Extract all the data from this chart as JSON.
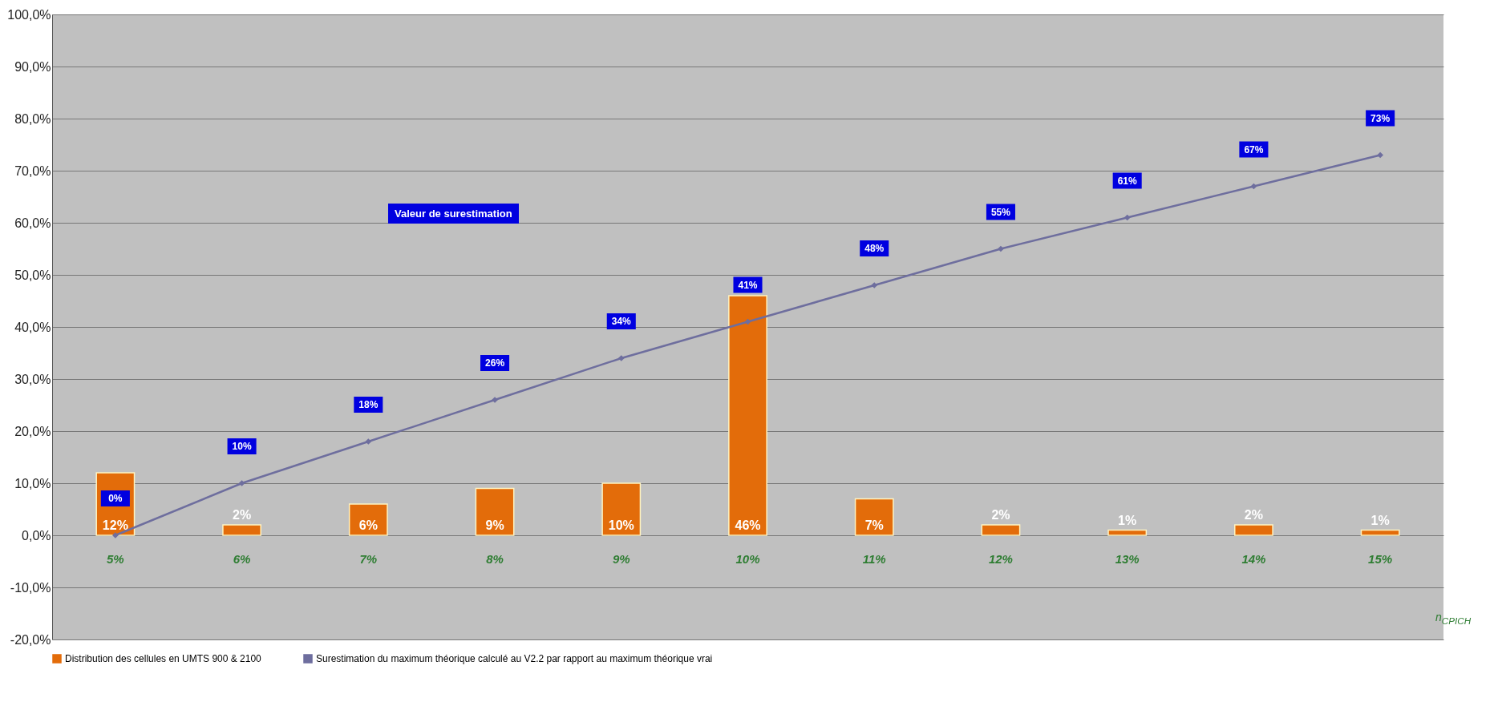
{
  "chart_data": {
    "type": "bar",
    "categories": [
      "5%",
      "6%",
      "7%",
      "8%",
      "9%",
      "10%",
      "11%",
      "12%",
      "13%",
      "14%",
      "15%"
    ],
    "series": [
      {
        "name": "Distribution des cellules en UMTS 900 & 2100",
        "color": "#e36c0a",
        "values": [
          12,
          2,
          6,
          9,
          10,
          46,
          7,
          2,
          1,
          2,
          1
        ],
        "value_labels": [
          "12%",
          "2%",
          "6%",
          "9%",
          "10%",
          "46%",
          "7%",
          "2%",
          "1%",
          "2%",
          "1%"
        ]
      },
      {
        "name": "Surestimation du maximum théorique calculé au V2.2 par rapport au maximum théorique vrai",
        "type": "line",
        "color": "#6e6e9e",
        "marker": "diamond",
        "line_style": "solid",
        "values": [
          0,
          10,
          18,
          26,
          34,
          41,
          48,
          55,
          61,
          67,
          73
        ],
        "value_labels": [
          "0%",
          "10%",
          "18%",
          "26%",
          "34%",
          "41%",
          "48%",
          "55%",
          "61%",
          "67%",
          "73%"
        ]
      }
    ],
    "ylim": [
      -20,
      100
    ],
    "yticks": [
      {
        "value": -20,
        "label": "-20,0%"
      },
      {
        "value": -10,
        "label": "-10,0%"
      },
      {
        "value": 0,
        "label": "0,0%"
      },
      {
        "value": 10,
        "label": "10,0%"
      },
      {
        "value": 20,
        "label": "20,0%"
      },
      {
        "value": 30,
        "label": "30,0%"
      },
      {
        "value": 40,
        "label": "40,0%"
      },
      {
        "value": 50,
        "label": "50,0%"
      },
      {
        "value": 60,
        "label": "60,0%"
      },
      {
        "value": 70,
        "label": "70,0%"
      },
      {
        "value": 80,
        "label": "80,0%"
      },
      {
        "value": 90,
        "label": "90,0%"
      },
      {
        "value": 100,
        "label": "100,0%"
      }
    ],
    "grid": "y",
    "legend": "bottom",
    "annotations": [
      "Valeur de surestimation",
      "n$_{CPICH}$"
    ]
  }
}
